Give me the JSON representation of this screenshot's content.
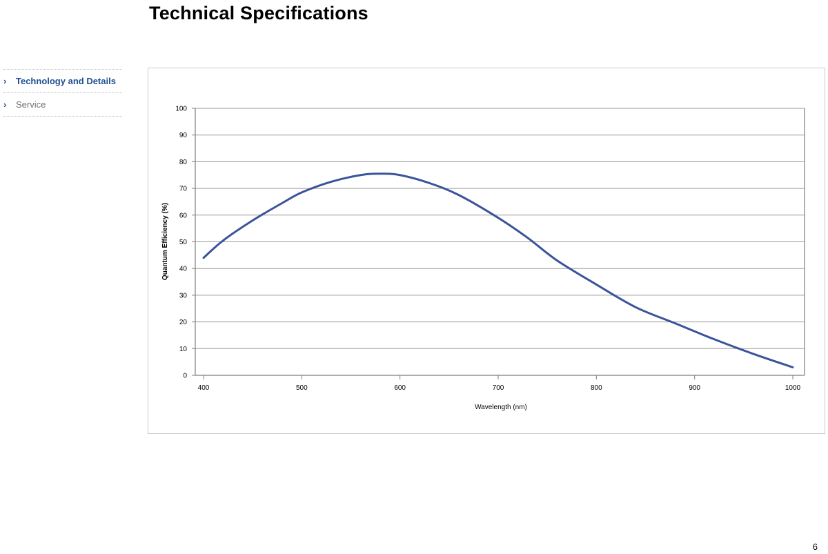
{
  "page": {
    "title": "Technical Specifications",
    "page_number": "6"
  },
  "sidebar": {
    "items": [
      {
        "label": "Technology and Details",
        "active": true
      },
      {
        "label": "Service",
        "active": false
      }
    ],
    "chevron": "›"
  },
  "colors": {
    "accent": "#1f4f91",
    "curve": "#3a539b",
    "grid": "#9a9a9a"
  },
  "chart_data": {
    "type": "line",
    "title": "",
    "xlabel": "Wavelength (nm)",
    "ylabel": "Quantum Efficiency (%)",
    "xlim": [
      400,
      1000
    ],
    "ylim": [
      0,
      100
    ],
    "xticks": [
      400,
      500,
      600,
      700,
      800,
      900,
      1000
    ],
    "yticks": [
      0,
      10,
      20,
      30,
      40,
      50,
      60,
      70,
      80,
      90,
      100
    ],
    "grid": true,
    "legend": "none",
    "series": [
      {
        "x": [
          400,
          420,
          450,
          480,
          500,
          530,
          560,
          580,
          600,
          630,
          660,
          700,
          730,
          760,
          800,
          840,
          880,
          920,
          960,
          1000
        ],
        "values": [
          44,
          50.5,
          58,
          64.5,
          68.5,
          72.5,
          75,
          75.5,
          75,
          72,
          67.5,
          59,
          51.5,
          43,
          34,
          25.5,
          19.5,
          13.5,
          8,
          3
        ]
      }
    ]
  }
}
